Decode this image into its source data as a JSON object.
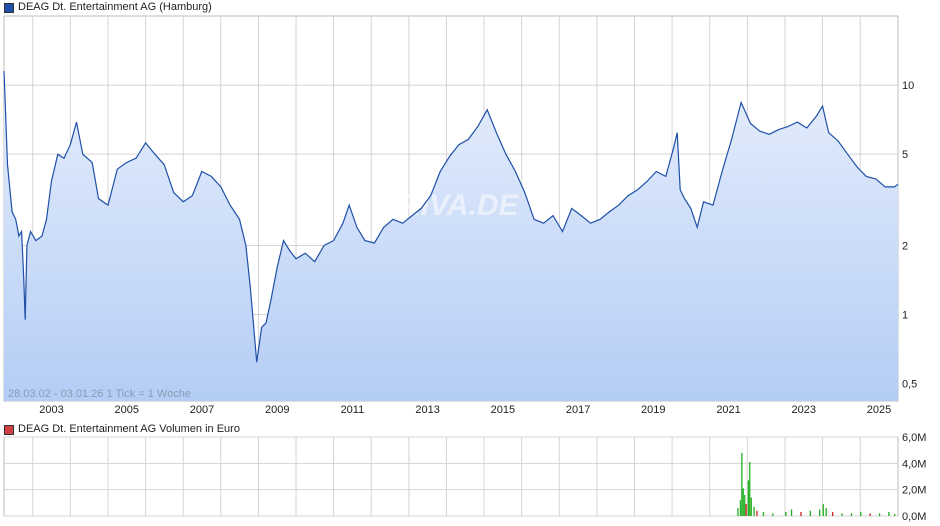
{
  "legend": {
    "price_label": "DEAG Dt. Entertainment AG (Hamburg)",
    "volume_label": "DEAG Dt. Entertainment AG Volumen in Euro"
  },
  "range_label": "28.03.02 - 03.01.26   1 Tick = 1 Woche",
  "watermark": "ARIVA.DE",
  "colors": {
    "price_line": "#1f4fa8",
    "area_top": "#e6eefc",
    "area_bottom": "#b4cdf5",
    "grid": "#d4d4d4",
    "volume_up": "#22b022",
    "volume_down": "#cc2222",
    "price_swatch": "#1f4fa8",
    "volume_swatch": "#d04040"
  },
  "chart_data": [
    {
      "type": "line",
      "series_name": "DEAG Dt. Entertainment AG (Hamburg)",
      "y_scale": "log",
      "x_range": [
        "2002-03-28",
        "2026-01-03"
      ],
      "ylim": [
        0.42,
        20
      ],
      "y_ticks": [
        0.5,
        1,
        2,
        5,
        10
      ],
      "y_tick_labels": [
        "0,5",
        "1",
        "2",
        "5",
        "10"
      ],
      "x_ticks": [
        "2003",
        "2005",
        "2007",
        "2009",
        "2011",
        "2013",
        "2015",
        "2017",
        "2019",
        "2021",
        "2023",
        "2025"
      ],
      "grid": true,
      "points": [
        [
          "2002-03-28",
          11.5
        ],
        [
          "2002-05-01",
          4.5
        ],
        [
          "2002-06-15",
          2.8
        ],
        [
          "2002-07-20",
          2.6
        ],
        [
          "2002-08-20",
          2.2
        ],
        [
          "2002-09-15",
          2.3
        ],
        [
          "2002-10-05",
          1.45
        ],
        [
          "2002-10-20",
          0.95
        ],
        [
          "2002-11-05",
          2.0
        ],
        [
          "2002-12-10",
          2.3
        ],
        [
          "2003-02-01",
          2.1
        ],
        [
          "2003-04-01",
          2.2
        ],
        [
          "2003-05-15",
          2.6
        ],
        [
          "2003-07-01",
          3.8
        ],
        [
          "2003-09-01",
          5.0
        ],
        [
          "2003-11-01",
          4.8
        ],
        [
          "2004-01-01",
          5.5
        ],
        [
          "2004-03-01",
          6.9
        ],
        [
          "2004-05-01",
          5.0
        ],
        [
          "2004-08-01",
          4.6
        ],
        [
          "2004-10-01",
          3.2
        ],
        [
          "2005-01-01",
          3.0
        ],
        [
          "2005-04-01",
          4.3
        ],
        [
          "2005-07-01",
          4.6
        ],
        [
          "2005-10-01",
          4.8
        ],
        [
          "2006-01-01",
          5.6
        ],
        [
          "2006-04-01",
          5.0
        ],
        [
          "2006-07-01",
          4.5
        ],
        [
          "2006-10-01",
          3.4
        ],
        [
          "2007-01-01",
          3.1
        ],
        [
          "2007-04-01",
          3.3
        ],
        [
          "2007-07-01",
          4.2
        ],
        [
          "2007-10-01",
          4.0
        ],
        [
          "2008-01-01",
          3.6
        ],
        [
          "2008-04-01",
          3.0
        ],
        [
          "2008-07-01",
          2.6
        ],
        [
          "2008-09-01",
          2.0
        ],
        [
          "2008-10-15",
          1.3
        ],
        [
          "2008-11-10",
          0.95
        ],
        [
          "2008-12-15",
          0.62
        ],
        [
          "2009-02-01",
          0.88
        ],
        [
          "2009-03-15",
          0.92
        ],
        [
          "2009-05-01",
          1.15
        ],
        [
          "2009-07-01",
          1.6
        ],
        [
          "2009-09-01",
          2.1
        ],
        [
          "2009-11-01",
          1.9
        ],
        [
          "2010-01-01",
          1.75
        ],
        [
          "2010-04-01",
          1.85
        ],
        [
          "2010-07-01",
          1.7
        ],
        [
          "2010-10-01",
          2.0
        ],
        [
          "2011-01-01",
          2.1
        ],
        [
          "2011-04-01",
          2.5
        ],
        [
          "2011-06-01",
          3.0
        ],
        [
          "2011-08-15",
          2.4
        ],
        [
          "2011-11-01",
          2.1
        ],
        [
          "2012-02-01",
          2.05
        ],
        [
          "2012-05-01",
          2.4
        ],
        [
          "2012-08-01",
          2.6
        ],
        [
          "2012-11-01",
          2.5
        ],
        [
          "2013-02-01",
          2.7
        ],
        [
          "2013-05-01",
          2.9
        ],
        [
          "2013-08-01",
          3.3
        ],
        [
          "2013-11-01",
          4.2
        ],
        [
          "2014-02-01",
          4.9
        ],
        [
          "2014-05-01",
          5.5
        ],
        [
          "2014-08-01",
          5.8
        ],
        [
          "2014-11-01",
          6.6
        ],
        [
          "2015-02-01",
          7.8
        ],
        [
          "2015-05-01",
          6.2
        ],
        [
          "2015-08-01",
          5.0
        ],
        [
          "2015-11-01",
          4.2
        ],
        [
          "2016-02-01",
          3.4
        ],
        [
          "2016-05-01",
          2.6
        ],
        [
          "2016-08-01",
          2.5
        ],
        [
          "2016-11-01",
          2.7
        ],
        [
          "2017-02-01",
          2.3
        ],
        [
          "2017-05-01",
          2.9
        ],
        [
          "2017-08-01",
          2.7
        ],
        [
          "2017-11-01",
          2.5
        ],
        [
          "2018-02-01",
          2.6
        ],
        [
          "2018-05-01",
          2.8
        ],
        [
          "2018-08-01",
          3.0
        ],
        [
          "2018-11-01",
          3.3
        ],
        [
          "2019-02-01",
          3.5
        ],
        [
          "2019-05-01",
          3.8
        ],
        [
          "2019-08-01",
          4.2
        ],
        [
          "2019-11-01",
          4.0
        ],
        [
          "2020-01-15",
          5.3
        ],
        [
          "2020-02-20",
          6.2
        ],
        [
          "2020-03-20",
          3.5
        ],
        [
          "2020-05-01",
          3.2
        ],
        [
          "2020-07-01",
          2.9
        ],
        [
          "2020-09-01",
          2.4
        ],
        [
          "2020-11-01",
          3.1
        ],
        [
          "2021-02-01",
          3.0
        ],
        [
          "2021-05-01",
          4.2
        ],
        [
          "2021-08-01",
          5.8
        ],
        [
          "2021-11-01",
          8.4
        ],
        [
          "2022-02-01",
          6.8
        ],
        [
          "2022-05-01",
          6.3
        ],
        [
          "2022-08-01",
          6.1
        ],
        [
          "2022-11-01",
          6.4
        ],
        [
          "2023-02-01",
          6.6
        ],
        [
          "2023-05-01",
          6.9
        ],
        [
          "2023-08-01",
          6.5
        ],
        [
          "2023-11-01",
          7.3
        ],
        [
          "2024-01-01",
          8.1
        ],
        [
          "2024-03-01",
          6.2
        ],
        [
          "2024-06-01",
          5.7
        ],
        [
          "2024-09-01",
          5.0
        ],
        [
          "2024-12-01",
          4.4
        ],
        [
          "2025-03-01",
          4.0
        ],
        [
          "2025-06-01",
          3.9
        ],
        [
          "2025-09-01",
          3.6
        ],
        [
          "2025-12-01",
          3.6
        ],
        [
          "2026-01-03",
          3.7
        ]
      ]
    },
    {
      "type": "bar",
      "series_name": "DEAG Dt. Entertainment AG Volumen in Euro",
      "ylim": [
        0,
        6.0
      ],
      "y_unit": "M",
      "y_ticks": [
        0,
        2,
        4,
        6
      ],
      "y_tick_labels": [
        "0,0M",
        "2,0M",
        "4,0M",
        "6,0M"
      ],
      "x_range": [
        "2002-03-28",
        "2026-01-03"
      ],
      "bars": [
        [
          "2021-10-01",
          0.6,
          "up"
        ],
        [
          "2021-10-25",
          1.2,
          "up"
        ],
        [
          "2021-11-08",
          4.8,
          "up"
        ],
        [
          "2021-11-22",
          2.1,
          "up"
        ],
        [
          "2021-12-06",
          1.6,
          "up"
        ],
        [
          "2021-12-20",
          0.9,
          "down"
        ],
        [
          "2022-01-10",
          2.7,
          "up"
        ],
        [
          "2022-01-24",
          4.1,
          "up"
        ],
        [
          "2022-02-07",
          1.4,
          "up"
        ],
        [
          "2022-03-07",
          0.7,
          "up"
        ],
        [
          "2022-04-04",
          0.4,
          "down"
        ],
        [
          "2022-06-06",
          0.3,
          "up"
        ],
        [
          "2022-09-05",
          0.2,
          "up"
        ],
        [
          "2023-01-09",
          0.3,
          "up"
        ],
        [
          "2023-03-06",
          0.5,
          "up"
        ],
        [
          "2023-06-05",
          0.3,
          "down"
        ],
        [
          "2023-09-04",
          0.4,
          "up"
        ],
        [
          "2023-12-04",
          0.5,
          "up"
        ],
        [
          "2024-01-08",
          0.9,
          "up"
        ],
        [
          "2024-02-05",
          0.6,
          "up"
        ],
        [
          "2024-04-08",
          0.3,
          "down"
        ],
        [
          "2024-07-08",
          0.2,
          "up"
        ],
        [
          "2024-10-07",
          0.2,
          "up"
        ],
        [
          "2025-01-06",
          0.3,
          "up"
        ],
        [
          "2025-04-07",
          0.2,
          "down"
        ],
        [
          "2025-07-07",
          0.2,
          "up"
        ],
        [
          "2025-10-06",
          0.3,
          "up"
        ],
        [
          "2025-12-01",
          0.15,
          "up"
        ]
      ]
    }
  ]
}
